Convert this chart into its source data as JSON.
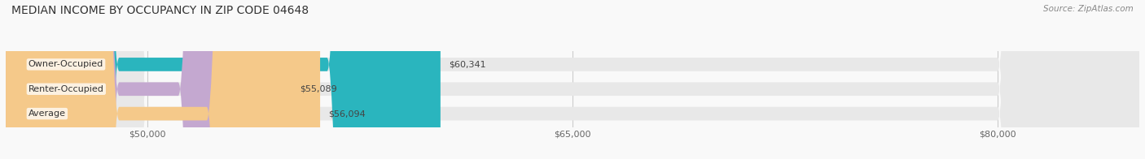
{
  "title": "MEDIAN INCOME BY OCCUPANCY IN ZIP CODE 04648",
  "source": "Source: ZipAtlas.com",
  "categories": [
    "Owner-Occupied",
    "Renter-Occupied",
    "Average"
  ],
  "values": [
    60341,
    55089,
    56094
  ],
  "bar_colors": [
    "#2ab5be",
    "#c4a8d0",
    "#f5c98a"
  ],
  "value_labels": [
    "$60,341",
    "$55,089",
    "$56,094"
  ],
  "xlim_min": 45000,
  "xlim_max": 85000,
  "xticks": [
    50000,
    65000,
    80000
  ],
  "xtick_labels": [
    "$50,000",
    "$65,000",
    "$80,000"
  ],
  "title_fontsize": 10,
  "source_fontsize": 7.5,
  "label_fontsize": 8,
  "tick_fontsize": 8,
  "bar_height": 0.55,
  "background_color": "#f9f9f9"
}
